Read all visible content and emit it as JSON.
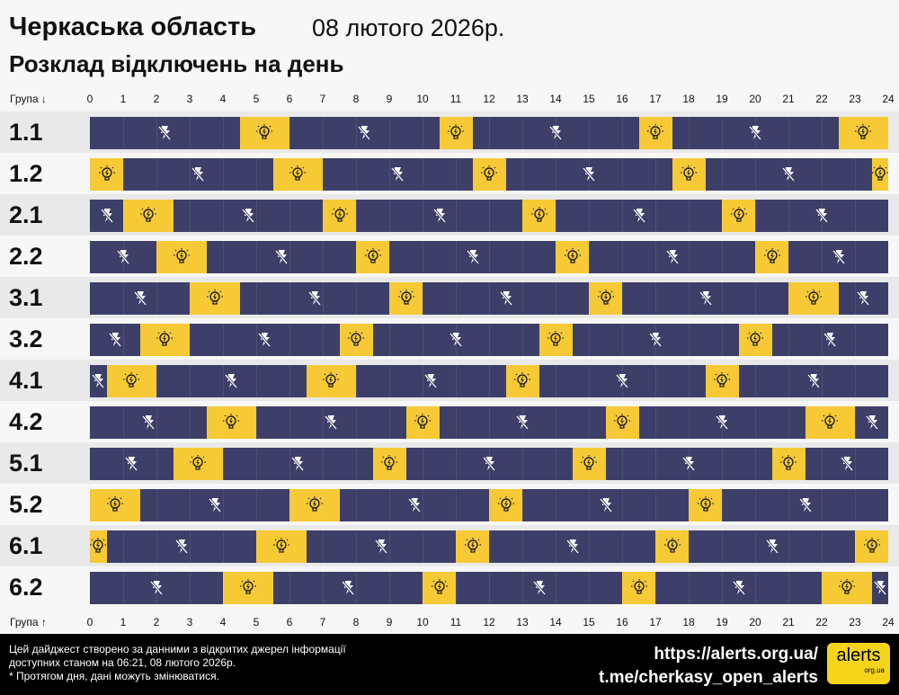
{
  "header": {
    "title": "Черкаська область",
    "date": "08 лютого 2026р.",
    "subtitle": "Розклад відключень на день"
  },
  "axis": {
    "top_label": "Група ↓",
    "bottom_label": "Група ↑",
    "ticks": [
      "0",
      "1",
      "2",
      "3",
      "4",
      "5",
      "6",
      "7",
      "8",
      "9",
      "10",
      "11",
      "12",
      "13",
      "14",
      "15",
      "16",
      "17",
      "18",
      "19",
      "20",
      "21",
      "22",
      "23",
      "24"
    ]
  },
  "colors": {
    "off": "#3e3f68",
    "on": "#f6c935"
  },
  "icons": {
    "off": "power-off-bolt-icon",
    "on": "lightbulb-icon"
  },
  "chart_data": {
    "type": "timeline",
    "xlim": [
      0,
      24
    ],
    "groups": [
      {
        "name": "1.1",
        "segments": [
          [
            "off",
            0,
            4.5
          ],
          [
            "on",
            4.5,
            6
          ],
          [
            "off",
            6,
            10.5
          ],
          [
            "on",
            10.5,
            11.5
          ],
          [
            "off",
            11.5,
            16.5
          ],
          [
            "on",
            16.5,
            17.5
          ],
          [
            "off",
            17.5,
            22.5
          ],
          [
            "on",
            22.5,
            24
          ]
        ]
      },
      {
        "name": "1.2",
        "segments": [
          [
            "on",
            0,
            1
          ],
          [
            "off",
            1,
            5.5
          ],
          [
            "on",
            5.5,
            7
          ],
          [
            "off",
            7,
            11.5
          ],
          [
            "on",
            11.5,
            12.5
          ],
          [
            "off",
            12.5,
            17.5
          ],
          [
            "on",
            17.5,
            18.5
          ],
          [
            "off",
            18.5,
            23.5
          ],
          [
            "on",
            23.5,
            24
          ]
        ]
      },
      {
        "name": "2.1",
        "segments": [
          [
            "off",
            0,
            1
          ],
          [
            "on",
            1,
            2.5
          ],
          [
            "off",
            2.5,
            7
          ],
          [
            "on",
            7,
            8
          ],
          [
            "off",
            8,
            13
          ],
          [
            "on",
            13,
            14
          ],
          [
            "off",
            14,
            19
          ],
          [
            "on",
            19,
            20
          ],
          [
            "off",
            20,
            24
          ]
        ]
      },
      {
        "name": "2.2",
        "segments": [
          [
            "off",
            0,
            2
          ],
          [
            "on",
            2,
            3.5
          ],
          [
            "off",
            3.5,
            8
          ],
          [
            "on",
            8,
            9
          ],
          [
            "off",
            9,
            14
          ],
          [
            "on",
            14,
            15
          ],
          [
            "off",
            15,
            20
          ],
          [
            "on",
            20,
            21
          ],
          [
            "off",
            21,
            24
          ]
        ]
      },
      {
        "name": "3.1",
        "segments": [
          [
            "off",
            0,
            3
          ],
          [
            "on",
            3,
            4.5
          ],
          [
            "off",
            4.5,
            9
          ],
          [
            "on",
            9,
            10
          ],
          [
            "off",
            10,
            15
          ],
          [
            "on",
            15,
            16
          ],
          [
            "off",
            16,
            21
          ],
          [
            "on",
            21,
            22.5
          ],
          [
            "off",
            22.5,
            24
          ]
        ]
      },
      {
        "name": "3.2",
        "segments": [
          [
            "off",
            0,
            1.5
          ],
          [
            "on",
            1.5,
            3
          ],
          [
            "off",
            3,
            7.5
          ],
          [
            "on",
            7.5,
            8.5
          ],
          [
            "off",
            8.5,
            13.5
          ],
          [
            "on",
            13.5,
            14.5
          ],
          [
            "off",
            14.5,
            19.5
          ],
          [
            "on",
            19.5,
            20.5
          ],
          [
            "off",
            20.5,
            24
          ]
        ]
      },
      {
        "name": "4.1",
        "segments": [
          [
            "off",
            0,
            0.5
          ],
          [
            "on",
            0.5,
            2
          ],
          [
            "off",
            2,
            6.5
          ],
          [
            "on",
            6.5,
            8
          ],
          [
            "off",
            8,
            12.5
          ],
          [
            "on",
            12.5,
            13.5
          ],
          [
            "off",
            13.5,
            18.5
          ],
          [
            "on",
            18.5,
            19.5
          ],
          [
            "off",
            19.5,
            24
          ]
        ]
      },
      {
        "name": "4.2",
        "segments": [
          [
            "off",
            0,
            3.5
          ],
          [
            "on",
            3.5,
            5
          ],
          [
            "off",
            5,
            9.5
          ],
          [
            "on",
            9.5,
            10.5
          ],
          [
            "off",
            10.5,
            15.5
          ],
          [
            "on",
            15.5,
            16.5
          ],
          [
            "off",
            16.5,
            21.5
          ],
          [
            "on",
            21.5,
            23
          ],
          [
            "off",
            23,
            24
          ]
        ]
      },
      {
        "name": "5.1",
        "segments": [
          [
            "off",
            0,
            2.5
          ],
          [
            "on",
            2.5,
            4
          ],
          [
            "off",
            4,
            8.5
          ],
          [
            "on",
            8.5,
            9.5
          ],
          [
            "off",
            9.5,
            14.5
          ],
          [
            "on",
            14.5,
            15.5
          ],
          [
            "off",
            15.5,
            20.5
          ],
          [
            "on",
            20.5,
            21.5
          ],
          [
            "off",
            21.5,
            24
          ]
        ]
      },
      {
        "name": "5.2",
        "segments": [
          [
            "on",
            0,
            1.5
          ],
          [
            "off",
            1.5,
            6
          ],
          [
            "on",
            6,
            7.5
          ],
          [
            "off",
            7.5,
            12
          ],
          [
            "on",
            12,
            13
          ],
          [
            "off",
            13,
            18
          ],
          [
            "on",
            18,
            19
          ],
          [
            "off",
            19,
            24
          ]
        ]
      },
      {
        "name": "6.1",
        "segments": [
          [
            "on",
            0,
            0.5
          ],
          [
            "off",
            0.5,
            5
          ],
          [
            "on",
            5,
            6.5
          ],
          [
            "off",
            6.5,
            11
          ],
          [
            "on",
            11,
            12
          ],
          [
            "off",
            12,
            17
          ],
          [
            "on",
            17,
            18
          ],
          [
            "off",
            18,
            23
          ],
          [
            "on",
            23,
            24
          ]
        ]
      },
      {
        "name": "6.2",
        "segments": [
          [
            "off",
            0,
            4
          ],
          [
            "on",
            4,
            5.5
          ],
          [
            "off",
            5.5,
            10
          ],
          [
            "on",
            10,
            11
          ],
          [
            "off",
            11,
            16
          ],
          [
            "on",
            16,
            17
          ],
          [
            "off",
            17,
            22
          ],
          [
            "on",
            22,
            23.5
          ],
          [
            "off",
            23.5,
            24
          ]
        ]
      }
    ]
  },
  "footer": {
    "note": [
      "Цей дайджест створено за данними з відкритих джерел інформації",
      "доступних станом на 06:21, 08 лютого 2026р.",
      "* Протягом дня, дані можуть змінюватися."
    ],
    "links": [
      "https://alerts.org.ua/",
      "t.me/cherkasy_open_alerts"
    ],
    "logo": "alerts",
    "logo_sub": "org.ua"
  }
}
